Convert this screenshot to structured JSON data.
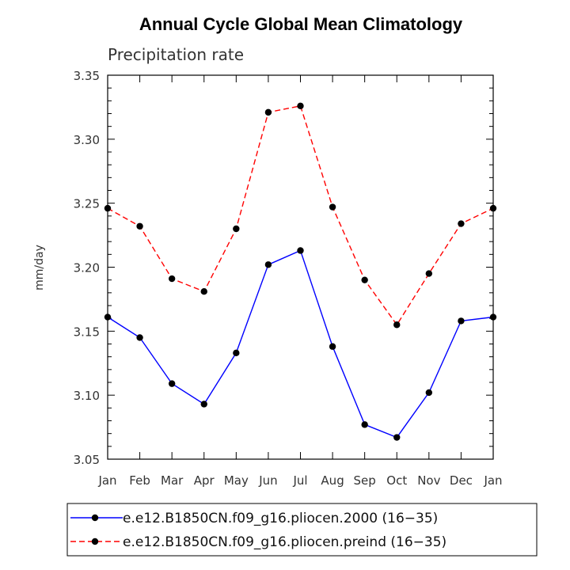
{
  "chart_data": {
    "type": "line",
    "title": "Annual Cycle Global Mean Climatology",
    "subtitle": "Precipitation rate",
    "xlabel": "",
    "ylabel": "mm/day",
    "categories": [
      "Jan",
      "Feb",
      "Mar",
      "Apr",
      "May",
      "Jun",
      "Jul",
      "Aug",
      "Sep",
      "Oct",
      "Nov",
      "Dec",
      "Jan"
    ],
    "yticks": [
      "3.05",
      "3.10",
      "3.15",
      "3.20",
      "3.25",
      "3.30",
      "3.35"
    ],
    "ylim": [
      3.05,
      3.35
    ],
    "grid": false,
    "legend_position": "bottom",
    "series": [
      {
        "name": "e.e12.B1850CN.f09_g16.pliocen.2000 (16−35)",
        "color": "#0000ff",
        "dashed": false,
        "values": [
          3.161,
          3.145,
          3.109,
          3.093,
          3.133,
          3.202,
          3.213,
          3.138,
          3.077,
          3.067,
          3.102,
          3.158,
          3.161
        ]
      },
      {
        "name": "e.e12.B1850CN.f09_g16.pliocen.preind (16−35)",
        "color": "#ff0000",
        "dashed": true,
        "values": [
          3.246,
          3.232,
          3.191,
          3.181,
          3.23,
          3.321,
          3.326,
          3.247,
          3.19,
          3.155,
          3.195,
          3.234,
          3.246
        ]
      }
    ]
  }
}
